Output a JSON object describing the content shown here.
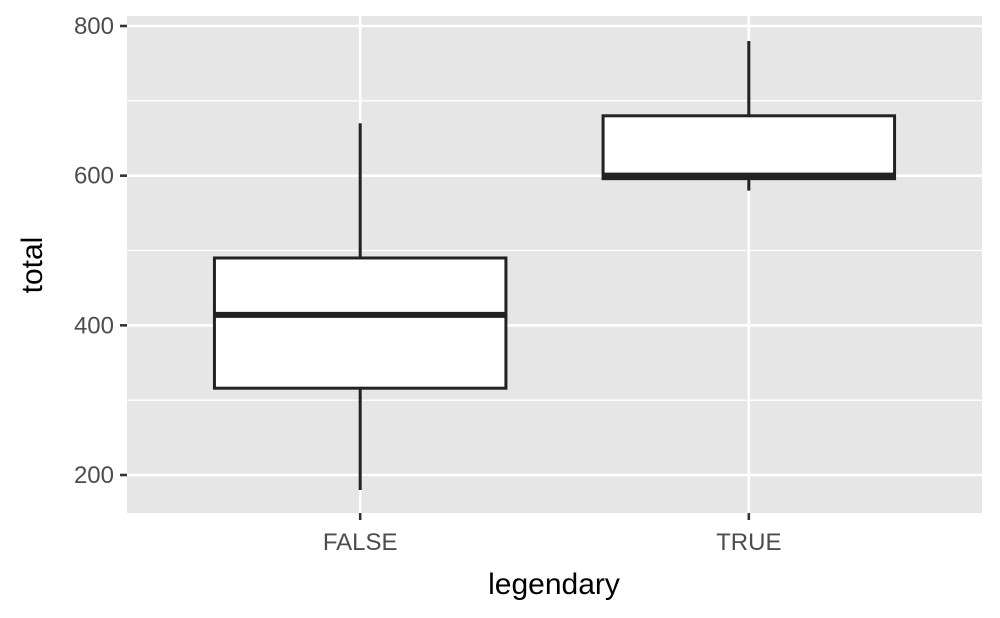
{
  "chart_data": {
    "type": "boxplot",
    "xlabel": "legendary",
    "ylabel": "total",
    "categories": [
      "FALSE",
      "TRUE"
    ],
    "ylim": [
      150,
      810
    ],
    "yticks": [
      200,
      400,
      600,
      800
    ],
    "yminor": [
      300,
      500,
      700
    ],
    "grid": true,
    "boxes": [
      {
        "category": "FALSE",
        "min": 180,
        "q1": 316,
        "median": 414,
        "q3": 490,
        "max": 670
      },
      {
        "category": "TRUE",
        "min": 580,
        "q1": 596,
        "median": 600,
        "q3": 680,
        "max": 780
      }
    ]
  }
}
